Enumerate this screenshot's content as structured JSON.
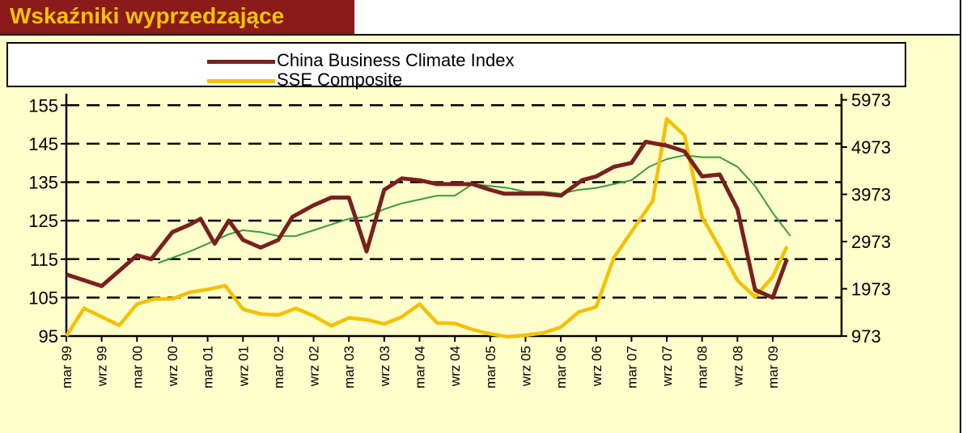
{
  "header": {
    "title": "Wskaźniki wyprzedzające"
  },
  "chart_data": {
    "type": "line",
    "legend": {
      "placement": "top",
      "entries": [
        "China Business Climate Index",
        "SSE Composite"
      ]
    },
    "x_tick_labels": [
      "mar 99",
      "wrz 99",
      "mar 00",
      "wrz 00",
      "mar 01",
      "wrz 01",
      "mar 02",
      "wrz 02",
      "mar 03",
      "wrz 03",
      "mar 04",
      "wrz 04",
      "mar 05",
      "wrz 05",
      "mar 06",
      "wrz 06",
      "mar 07",
      "wrz 07",
      "mar 08",
      "wrz 08",
      "mar 09"
    ],
    "y_left": {
      "ticks": [
        95,
        105,
        115,
        125,
        135,
        145,
        155
      ],
      "range": [
        95,
        158
      ]
    },
    "y_right": {
      "ticks": [
        "973",
        "1973",
        "2973",
        "3973",
        "4973",
        "5973"
      ],
      "range": [
        973,
        6103
      ]
    },
    "grid": "horizontal-dashed",
    "colors": {
      "cbci": "#7a1f1f",
      "sse": "#f5c000",
      "trend": "#3a9a3a"
    },
    "series": [
      {
        "name": "China Business Climate Index",
        "axis": "left",
        "points": [
          [
            0,
            111
          ],
          [
            1,
            108
          ],
          [
            2,
            116
          ],
          [
            2.4,
            115
          ],
          [
            3,
            122
          ],
          [
            3.5,
            124
          ],
          [
            3.8,
            125.5
          ],
          [
            4.2,
            119
          ],
          [
            4.6,
            125
          ],
          [
            5,
            120
          ],
          [
            5.5,
            118
          ],
          [
            6,
            120
          ],
          [
            6.4,
            126
          ],
          [
            7,
            129
          ],
          [
            7.5,
            131
          ],
          [
            8,
            131
          ],
          [
            8.5,
            117
          ],
          [
            9,
            133
          ],
          [
            9.5,
            136
          ],
          [
            10,
            135.5
          ],
          [
            10.5,
            134.5
          ],
          [
            11,
            134.5
          ],
          [
            11.5,
            134.5
          ],
          [
            12,
            133
          ],
          [
            12.4,
            132
          ],
          [
            13,
            132
          ],
          [
            13.5,
            132
          ],
          [
            14,
            131.5
          ],
          [
            14.6,
            135.5
          ],
          [
            15,
            136.5
          ],
          [
            15.5,
            139
          ],
          [
            16,
            140
          ],
          [
            16.4,
            145.5
          ],
          [
            17,
            144.5
          ],
          [
            17.5,
            143
          ],
          [
            18,
            136.5
          ],
          [
            18.5,
            137
          ],
          [
            19,
            128
          ],
          [
            19.5,
            107
          ],
          [
            20,
            105
          ],
          [
            20.4,
            115
          ]
        ]
      },
      {
        "name": "SSE Composite",
        "axis": "right",
        "points": [
          [
            0,
            973
          ],
          [
            0.5,
            1560
          ],
          [
            1,
            1380
          ],
          [
            1.5,
            1200
          ],
          [
            2,
            1650
          ],
          [
            2.5,
            1760
          ],
          [
            3,
            1760
          ],
          [
            3.5,
            1900
          ],
          [
            4,
            1960
          ],
          [
            4.5,
            2040
          ],
          [
            5,
            1540
          ],
          [
            5.5,
            1440
          ],
          [
            6,
            1420
          ],
          [
            6.5,
            1560
          ],
          [
            7,
            1400
          ],
          [
            7.5,
            1190
          ],
          [
            8,
            1360
          ],
          [
            8.5,
            1320
          ],
          [
            9,
            1230
          ],
          [
            9.5,
            1380
          ],
          [
            10,
            1650
          ],
          [
            10.5,
            1250
          ],
          [
            11,
            1240
          ],
          [
            11.5,
            1110
          ],
          [
            12,
            1020
          ],
          [
            12.5,
            960
          ],
          [
            13,
            990
          ],
          [
            13.5,
            1040
          ],
          [
            14,
            1160
          ],
          [
            14.5,
            1480
          ],
          [
            15,
            1590
          ],
          [
            15.5,
            2630
          ],
          [
            16,
            3180
          ],
          [
            16.6,
            3830
          ],
          [
            17,
            5570
          ],
          [
            17.5,
            5220
          ],
          [
            18,
            3490
          ],
          [
            18.5,
            2840
          ],
          [
            19,
            2150
          ],
          [
            19.5,
            1800
          ],
          [
            20,
            2230
          ],
          [
            20.4,
            2870
          ]
        ]
      },
      {
        "axis": "left",
        "points": [
          [
            2.6,
            114
          ],
          [
            3.5,
            117
          ],
          [
            4,
            119
          ],
          [
            4.6,
            121.5
          ],
          [
            5,
            122.5
          ],
          [
            5.5,
            122
          ],
          [
            6,
            121
          ],
          [
            6.5,
            121
          ],
          [
            7,
            122.5
          ],
          [
            7.5,
            124
          ],
          [
            8,
            125.5
          ],
          [
            8.5,
            126
          ],
          [
            9,
            128
          ],
          [
            9.5,
            129.5
          ],
          [
            10,
            130.5
          ],
          [
            10.5,
            131.5
          ],
          [
            11,
            131.5
          ],
          [
            11.5,
            134.5
          ],
          [
            12,
            134
          ],
          [
            12.5,
            133.5
          ],
          [
            13,
            132.5
          ],
          [
            13.5,
            132.5
          ],
          [
            14,
            132
          ],
          [
            14.5,
            133
          ],
          [
            15,
            133.5
          ],
          [
            15.5,
            134.5
          ],
          [
            16,
            135.5
          ],
          [
            16.5,
            139
          ],
          [
            17,
            141
          ],
          [
            17.5,
            142
          ],
          [
            18,
            141.5
          ],
          [
            18.5,
            141.5
          ],
          [
            19,
            139
          ],
          [
            19.5,
            134
          ],
          [
            20,
            127
          ],
          [
            20.5,
            121
          ]
        ]
      }
    ]
  }
}
